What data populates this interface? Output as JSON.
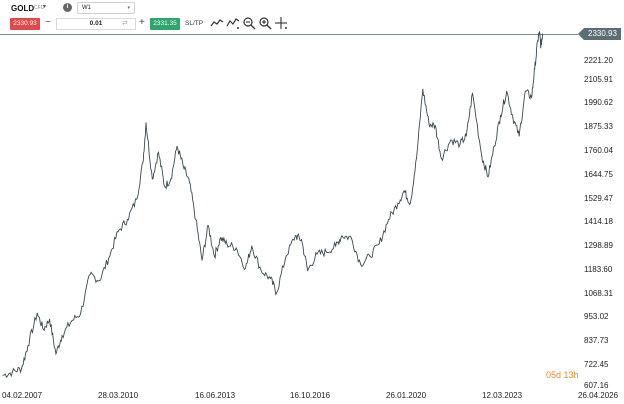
{
  "toolbar": {
    "symbol": "GOLD",
    "symbol_type": "CFD",
    "info_icon": "i",
    "timeframe": "W1",
    "sell_price": "2330.93",
    "minus": "−",
    "quantity": "0.01",
    "plus": "+",
    "buy_price": "2331.35",
    "sltp_label": "SL/TP",
    "tool_icons": [
      "line-chart-icon",
      "indicators-icon",
      "zoom-out-icon",
      "zoom-in-icon",
      "crosshair-icon"
    ]
  },
  "price_tag": "2330.93",
  "countdown": "05d 13h",
  "colors": {
    "line": "#3a4a50",
    "sell": "#e04a4a",
    "buy": "#2ea66b",
    "price_tag": "#5c6d73",
    "countdown": "#ef8a2d"
  },
  "chart_data": {
    "type": "line",
    "y_ticks": [
      "2330.93",
      "2221.20",
      "2105.91",
      "1990.62",
      "1875.33",
      "1760.04",
      "1644.75",
      "1529.47",
      "1414.18",
      "1298.89",
      "1183.60",
      "1068.31",
      "953.02",
      "837.73",
      "722.45",
      "607.16"
    ],
    "x_ticks": [
      "04.02.2007",
      "28.03.2010",
      "16.06.2013",
      "16.10.2016",
      "26.01.2020",
      "12.03.2023",
      "26.04.2026"
    ],
    "ylim": [
      607.16,
      2350
    ],
    "series": [
      {
        "values": [
          [
            2007.1,
            655
          ],
          [
            2007.4,
            670
          ],
          [
            2007.7,
            690
          ],
          [
            2007.9,
            800
          ],
          [
            2008.2,
            960
          ],
          [
            2008.4,
            880
          ],
          [
            2008.6,
            930
          ],
          [
            2008.8,
            760
          ],
          [
            2009.0,
            850
          ],
          [
            2009.3,
            920
          ],
          [
            2009.6,
            960
          ],
          [
            2009.9,
            1150
          ],
          [
            2010.2,
            1120
          ],
          [
            2010.5,
            1230
          ],
          [
            2010.8,
            1360
          ],
          [
            2011.1,
            1420
          ],
          [
            2011.4,
            1520
          ],
          [
            2011.6,
            1700
          ],
          [
            2011.7,
            1895
          ],
          [
            2011.9,
            1620
          ],
          [
            2012.1,
            1750
          ],
          [
            2012.3,
            1580
          ],
          [
            2012.5,
            1620
          ],
          [
            2012.7,
            1780
          ],
          [
            2012.9,
            1680
          ],
          [
            2013.1,
            1600
          ],
          [
            2013.3,
            1420
          ],
          [
            2013.5,
            1220
          ],
          [
            2013.7,
            1390
          ],
          [
            2013.9,
            1240
          ],
          [
            2014.1,
            1330
          ],
          [
            2014.3,
            1300
          ],
          [
            2014.6,
            1280
          ],
          [
            2014.9,
            1180
          ],
          [
            2015.1,
            1290
          ],
          [
            2015.4,
            1170
          ],
          [
            2015.7,
            1130
          ],
          [
            2015.9,
            1060
          ],
          [
            2016.2,
            1240
          ],
          [
            2016.5,
            1340
          ],
          [
            2016.7,
            1320
          ],
          [
            2016.9,
            1170
          ],
          [
            2017.2,
            1250
          ],
          [
            2017.5,
            1260
          ],
          [
            2017.8,
            1290
          ],
          [
            2018.0,
            1340
          ],
          [
            2018.3,
            1330
          ],
          [
            2018.6,
            1200
          ],
          [
            2018.9,
            1240
          ],
          [
            2019.2,
            1300
          ],
          [
            2019.5,
            1420
          ],
          [
            2019.8,
            1500
          ],
          [
            2020.0,
            1560
          ],
          [
            2020.2,
            1500
          ],
          [
            2020.4,
            1720
          ],
          [
            2020.6,
            2060
          ],
          [
            2020.8,
            1890
          ],
          [
            2021.0,
            1880
          ],
          [
            2021.2,
            1720
          ],
          [
            2021.5,
            1810
          ],
          [
            2021.8,
            1790
          ],
          [
            2022.0,
            1830
          ],
          [
            2022.2,
            2040
          ],
          [
            2022.5,
            1730
          ],
          [
            2022.7,
            1630
          ],
          [
            2022.9,
            1780
          ],
          [
            2023.1,
            1930
          ],
          [
            2023.3,
            2050
          ],
          [
            2023.5,
            1920
          ],
          [
            2023.7,
            1830
          ],
          [
            2023.9,
            2050
          ],
          [
            2024.1,
            2020
          ],
          [
            2024.2,
            2160
          ],
          [
            2024.3,
            2300
          ],
          [
            2024.35,
            2340
          ],
          [
            2024.4,
            2270
          ],
          [
            2024.45,
            2331
          ]
        ]
      }
    ]
  }
}
